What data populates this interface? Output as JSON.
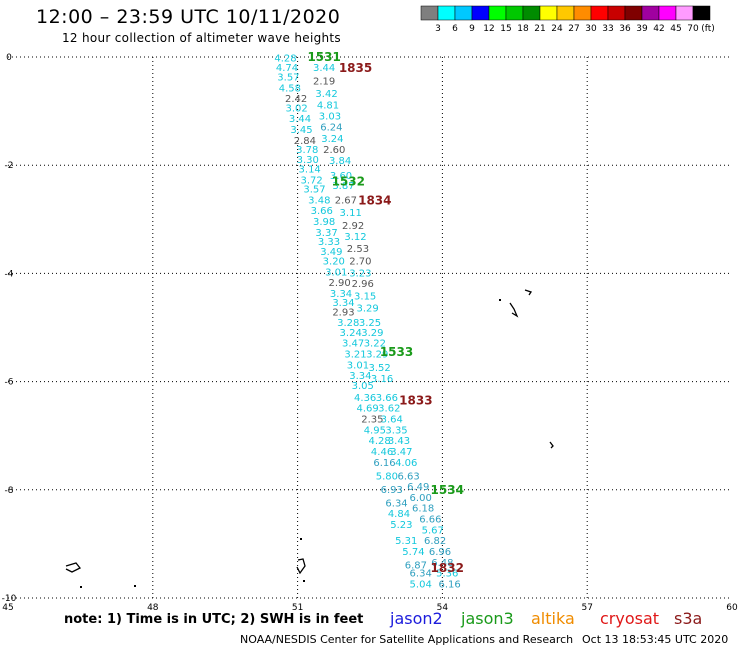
{
  "header": {
    "title": "12:00 – 23:59 UTC 10/11/2020",
    "subtitle": "12 hour collection of altimeter wave heights"
  },
  "colorbar": {
    "unit_label": "(ft)",
    "levels": [
      "3",
      "6",
      "9",
      "12",
      "15",
      "18",
      "21",
      "24",
      "27",
      "30",
      "33",
      "36",
      "39",
      "42",
      "45",
      "70"
    ],
    "colors": [
      "#7f7f7f",
      "#00ffff",
      "#00c8ff",
      "#0000ff",
      "#00ff00",
      "#00c800",
      "#008c00",
      "#ffff00",
      "#ffc800",
      "#ff8c00",
      "#ff0000",
      "#c80000",
      "#7f0000",
      "#a000a0",
      "#ff00ff",
      "#ff9bff",
      "#000000"
    ]
  },
  "chart_data": {
    "type": "scatter",
    "title": "12:00 – 23:59 UTC 10/11/2020",
    "subtitle": "12 hour collection of altimeter wave heights",
    "xlim": [
      45,
      60
    ],
    "ylim": [
      -10,
      0
    ],
    "x_ticks": [
      "45",
      "48",
      "51",
      "54",
      "57",
      "60"
    ],
    "y_ticks": [
      "0",
      "-2",
      "-4",
      "-6",
      "-8",
      "-10"
    ],
    "grid": true,
    "color_map": {
      "gray": "#555555",
      "cyan": "#14c8dc",
      "teal": "#2f9fbf"
    },
    "points": [
      {
        "x": 50.75,
        "y": -0.03,
        "v": "4.28",
        "c": "cyan"
      },
      {
        "x": 50.78,
        "y": -0.2,
        "v": "4.74",
        "c": "cyan"
      },
      {
        "x": 51.55,
        "y": -0.2,
        "v": "3.44",
        "c": "cyan"
      },
      {
        "x": 50.81,
        "y": -0.38,
        "v": "3.57",
        "c": "cyan"
      },
      {
        "x": 51.55,
        "y": -0.45,
        "v": "2.19",
        "c": "gray"
      },
      {
        "x": 50.84,
        "y": -0.58,
        "v": "4.58",
        "c": "cyan"
      },
      {
        "x": 51.6,
        "y": -0.68,
        "v": "3.42",
        "c": "cyan"
      },
      {
        "x": 50.97,
        "y": -0.78,
        "v": "2.42",
        "c": "gray"
      },
      {
        "x": 51.63,
        "y": -0.9,
        "v": "4.81",
        "c": "cyan"
      },
      {
        "x": 50.98,
        "y": -0.95,
        "v": "3.02",
        "c": "cyan"
      },
      {
        "x": 51.67,
        "y": -1.1,
        "v": "3.03",
        "c": "cyan"
      },
      {
        "x": 51.05,
        "y": -1.15,
        "v": "3.44",
        "c": "cyan"
      },
      {
        "x": 51.7,
        "y": -1.3,
        "v": "6.24",
        "c": "teal"
      },
      {
        "x": 51.08,
        "y": -1.35,
        "v": "3.45",
        "c": "cyan"
      },
      {
        "x": 51.72,
        "y": -1.52,
        "v": "3.24",
        "c": "cyan"
      },
      {
        "x": 51.15,
        "y": -1.55,
        "v": "2.84",
        "c": "gray"
      },
      {
        "x": 51.76,
        "y": -1.72,
        "v": "2.60",
        "c": "gray"
      },
      {
        "x": 51.2,
        "y": -1.72,
        "v": "3.78",
        "c": "cyan"
      },
      {
        "x": 51.21,
        "y": -1.9,
        "v": "3.30",
        "c": "cyan"
      },
      {
        "x": 51.88,
        "y": -1.92,
        "v": "3.84",
        "c": "cyan"
      },
      {
        "x": 51.25,
        "y": -2.08,
        "v": "3.14",
        "c": "cyan"
      },
      {
        "x": 51.9,
        "y": -2.2,
        "v": "3.60",
        "c": "cyan"
      },
      {
        "x": 51.29,
        "y": -2.28,
        "v": "3.72",
        "c": "cyan"
      },
      {
        "x": 51.95,
        "y": -2.38,
        "v": "3.87",
        "c": "cyan"
      },
      {
        "x": 51.35,
        "y": -2.45,
        "v": "3.57",
        "c": "cyan"
      },
      {
        "x": 51.45,
        "y": -2.65,
        "v": "3.48",
        "c": "cyan"
      },
      {
        "x": 52.0,
        "y": -2.65,
        "v": "2.67",
        "c": "gray"
      },
      {
        "x": 51.5,
        "y": -2.85,
        "v": "3.66",
        "c": "cyan"
      },
      {
        "x": 52.1,
        "y": -2.88,
        "v": "3.11",
        "c": "cyan"
      },
      {
        "x": 51.55,
        "y": -3.05,
        "v": "3.98",
        "c": "cyan"
      },
      {
        "x": 52.15,
        "y": -3.12,
        "v": "2.92",
        "c": "gray"
      },
      {
        "x": 51.6,
        "y": -3.25,
        "v": "3.37",
        "c": "cyan"
      },
      {
        "x": 52.2,
        "y": -3.33,
        "v": "3.12",
        "c": "cyan"
      },
      {
        "x": 51.65,
        "y": -3.42,
        "v": "3.33",
        "c": "cyan"
      },
      {
        "x": 52.25,
        "y": -3.55,
        "v": "2.53",
        "c": "gray"
      },
      {
        "x": 51.7,
        "y": -3.6,
        "v": "3.49",
        "c": "cyan"
      },
      {
        "x": 51.75,
        "y": -3.78,
        "v": "3.20",
        "c": "cyan"
      },
      {
        "x": 52.3,
        "y": -3.78,
        "v": "2.70",
        "c": "gray"
      },
      {
        "x": 51.8,
        "y": -3.98,
        "v": "3.01",
        "c": "cyan"
      },
      {
        "x": 52.3,
        "y": -4.0,
        "v": "3.23",
        "c": "cyan"
      },
      {
        "x": 51.87,
        "y": -4.18,
        "v": "2.90",
        "c": "gray"
      },
      {
        "x": 52.35,
        "y": -4.2,
        "v": "2.96",
        "c": "gray"
      },
      {
        "x": 51.9,
        "y": -4.38,
        "v": "3.34",
        "c": "cyan"
      },
      {
        "x": 52.4,
        "y": -4.43,
        "v": "3.15",
        "c": "cyan"
      },
      {
        "x": 51.95,
        "y": -4.55,
        "v": "3.34",
        "c": "cyan"
      },
      {
        "x": 52.45,
        "y": -4.65,
        "v": "3.29",
        "c": "cyan"
      },
      {
        "x": 51.95,
        "y": -4.72,
        "v": "2.93",
        "c": "gray"
      },
      {
        "x": 52.05,
        "y": -4.92,
        "v": "3.28",
        "c": "cyan"
      },
      {
        "x": 52.5,
        "y": -4.92,
        "v": "3.25",
        "c": "cyan"
      },
      {
        "x": 52.1,
        "y": -5.1,
        "v": "3.24",
        "c": "cyan"
      },
      {
        "x": 52.55,
        "y": -5.1,
        "v": "3.29",
        "c": "cyan"
      },
      {
        "x": 52.15,
        "y": -5.3,
        "v": "3.47",
        "c": "cyan"
      },
      {
        "x": 52.6,
        "y": -5.3,
        "v": "3.22",
        "c": "cyan"
      },
      {
        "x": 52.2,
        "y": -5.5,
        "v": "3.21",
        "c": "cyan"
      },
      {
        "x": 52.65,
        "y": -5.5,
        "v": "3.29",
        "c": "cyan"
      },
      {
        "x": 52.25,
        "y": -5.7,
        "v": "3.01",
        "c": "cyan"
      },
      {
        "x": 52.7,
        "y": -5.75,
        "v": "3.52",
        "c": "cyan"
      },
      {
        "x": 52.3,
        "y": -5.9,
        "v": "3.34",
        "c": "cyan"
      },
      {
        "x": 52.75,
        "y": -5.95,
        "v": "3.16",
        "c": "cyan"
      },
      {
        "x": 52.35,
        "y": -6.08,
        "v": "3.05",
        "c": "cyan"
      },
      {
        "x": 52.4,
        "y": -6.3,
        "v": "4.36",
        "c": "cyan"
      },
      {
        "x": 52.85,
        "y": -6.3,
        "v": "3.66",
        "c": "cyan"
      },
      {
        "x": 52.45,
        "y": -6.5,
        "v": "4.69",
        "c": "cyan"
      },
      {
        "x": 52.9,
        "y": -6.5,
        "v": "3.62",
        "c": "cyan"
      },
      {
        "x": 52.55,
        "y": -6.7,
        "v": "2.35",
        "c": "gray"
      },
      {
        "x": 52.95,
        "y": -6.7,
        "v": "3.64",
        "c": "cyan"
      },
      {
        "x": 52.6,
        "y": -6.9,
        "v": "4.95",
        "c": "cyan"
      },
      {
        "x": 53.05,
        "y": -6.9,
        "v": "3.35",
        "c": "cyan"
      },
      {
        "x": 52.7,
        "y": -7.1,
        "v": "4.28",
        "c": "cyan"
      },
      {
        "x": 53.1,
        "y": -7.1,
        "v": "3.43",
        "c": "cyan"
      },
      {
        "x": 52.75,
        "y": -7.3,
        "v": "4.46",
        "c": "cyan"
      },
      {
        "x": 53.15,
        "y": -7.3,
        "v": "3.47",
        "c": "cyan"
      },
      {
        "x": 52.8,
        "y": -7.5,
        "v": "6.16",
        "c": "teal"
      },
      {
        "x": 53.25,
        "y": -7.5,
        "v": "4.06",
        "c": "cyan"
      },
      {
        "x": 52.85,
        "y": -7.75,
        "v": "5.80",
        "c": "cyan"
      },
      {
        "x": 53.3,
        "y": -7.75,
        "v": "6.63",
        "c": "teal"
      },
      {
        "x": 53.5,
        "y": -7.95,
        "v": "6.49",
        "c": "teal"
      },
      {
        "x": 52.95,
        "y": -8.0,
        "v": "6.93",
        "c": "teal"
      },
      {
        "x": 53.55,
        "y": -8.15,
        "v": "6.00",
        "c": "teal"
      },
      {
        "x": 53.05,
        "y": -8.25,
        "v": "6.34",
        "c": "teal"
      },
      {
        "x": 53.6,
        "y": -8.35,
        "v": "6.18",
        "c": "teal"
      },
      {
        "x": 53.1,
        "y": -8.45,
        "v": "4.84",
        "c": "cyan"
      },
      {
        "x": 53.75,
        "y": -8.55,
        "v": "6.66",
        "c": "teal"
      },
      {
        "x": 53.15,
        "y": -8.65,
        "v": "5.23",
        "c": "cyan"
      },
      {
        "x": 53.8,
        "y": -8.75,
        "v": "5.67",
        "c": "cyan"
      },
      {
        "x": 53.25,
        "y": -8.95,
        "v": "5.31",
        "c": "cyan"
      },
      {
        "x": 53.85,
        "y": -8.95,
        "v": "6.82",
        "c": "teal"
      },
      {
        "x": 53.4,
        "y": -9.15,
        "v": "5.74",
        "c": "cyan"
      },
      {
        "x": 53.95,
        "y": -9.15,
        "v": "6.96",
        "c": "teal"
      },
      {
        "x": 54.0,
        "y": -9.35,
        "v": "6.48",
        "c": "teal"
      },
      {
        "x": 53.45,
        "y": -9.4,
        "v": "6.87",
        "c": "teal"
      },
      {
        "x": 53.55,
        "y": -9.55,
        "v": "6.34",
        "c": "teal"
      },
      {
        "x": 54.1,
        "y": -9.55,
        "v": "5.36",
        "c": "cyan"
      },
      {
        "x": 53.55,
        "y": -9.75,
        "v": "5.04",
        "c": "cyan"
      },
      {
        "x": 54.15,
        "y": -9.75,
        "v": "6.16",
        "c": "teal"
      }
    ],
    "time_labels": [
      {
        "x": 51.55,
        "y": 0.0,
        "text": "1531",
        "satellite": "jason3"
      },
      {
        "x": 52.2,
        "y": -0.2,
        "text": "1835",
        "satellite": "s3a"
      },
      {
        "x": 52.05,
        "y": -2.3,
        "text": "1532",
        "satellite": "jason3"
      },
      {
        "x": 52.6,
        "y": -2.65,
        "text": "1834",
        "satellite": "s3a"
      },
      {
        "x": 53.05,
        "y": -5.45,
        "text": "1533",
        "satellite": "jason3"
      },
      {
        "x": 53.45,
        "y": -6.35,
        "text": "1833",
        "satellite": "s3a"
      },
      {
        "x": 54.1,
        "y": -8.0,
        "text": "1534",
        "satellite": "jason3"
      },
      {
        "x": 54.1,
        "y": -9.45,
        "text": "1832",
        "satellite": "s3a"
      }
    ]
  },
  "legend": {
    "jason2": "jason2",
    "jason3": "jason3",
    "altika": "altika",
    "cryosat": "cryosat",
    "s3a": "s3a",
    "colors": {
      "jason2": "#1c1cdc",
      "jason3": "#1a9a1a",
      "altika": "#f08c00",
      "cryosat": "#e01818",
      "s3a": "#8b1a1a"
    }
  },
  "footer": {
    "note": "note:  1) Time is in UTC; 2) SWH is in feet",
    "credit": "NOAA/NESDIS Center for Satellite Applications and Research",
    "timestamp": "Oct 13 18:53:45 UTC 2020"
  }
}
